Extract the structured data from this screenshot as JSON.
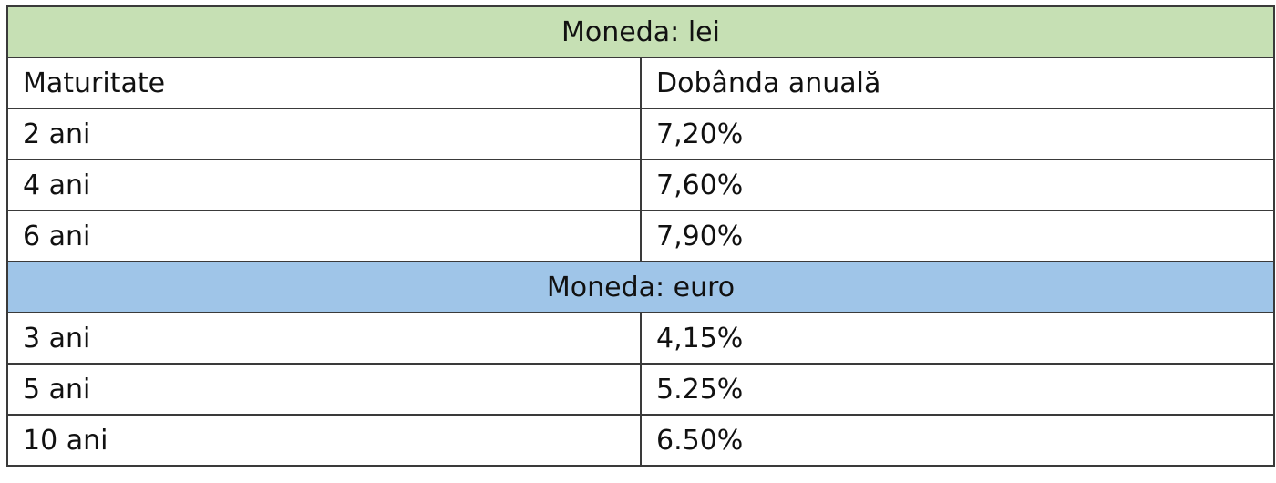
{
  "table": {
    "sections": [
      {
        "title": "Moneda: lei",
        "header": [
          "Maturitate",
          "Dobânda anuală"
        ],
        "rows": [
          [
            "2 ani",
            "7,20%"
          ],
          [
            "4 ani",
            "7,60%"
          ],
          [
            "6 ani",
            "7,90%"
          ]
        ]
      },
      {
        "title": "Moneda: euro",
        "rows": [
          [
            "3 ani",
            "4,15%"
          ],
          [
            "5 ani",
            "5.25%"
          ],
          [
            "10 ani",
            "6.50%"
          ]
        ]
      }
    ]
  }
}
